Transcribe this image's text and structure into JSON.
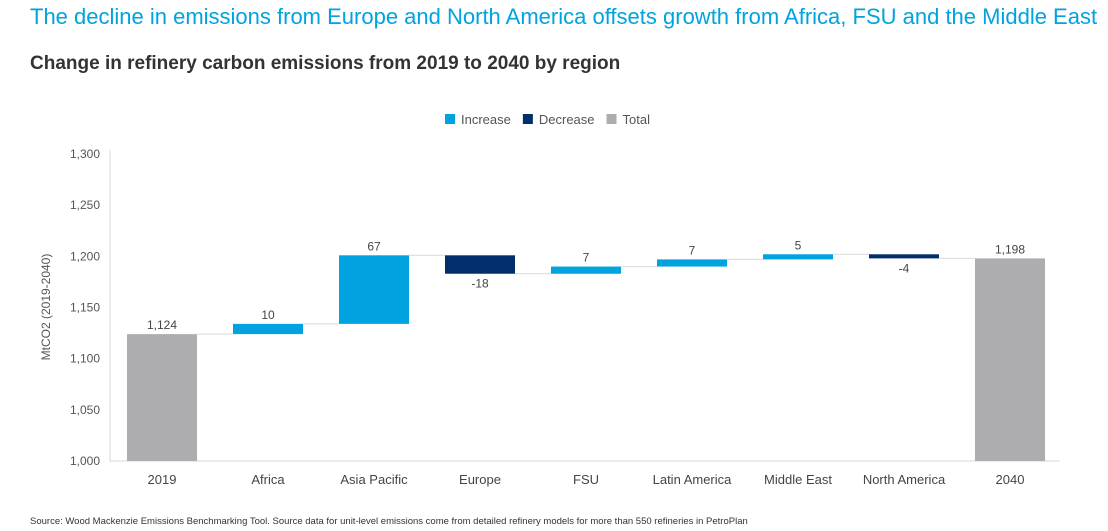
{
  "title": "The decline in emissions from Europe and North America offsets growth from Africa, FSU and the Middle East",
  "subtitle": "Change in refinery carbon emissions from 2019 to 2040 by region",
  "source": "Source: Wood Mackenzie Emissions Benchmarking Tool.  Source data for unit-level emissions come from detailed refinery models for more than 550 refineries in PetroPlan",
  "chart_data": {
    "type": "waterfall",
    "ylabel": "MtCO2 (2019-2040)",
    "ylim": [
      1000,
      1300
    ],
    "yticks": [
      1000,
      1050,
      1100,
      1150,
      1200,
      1250,
      1300
    ],
    "ytick_labels": [
      "1,000",
      "1,050",
      "1,100",
      "1,150",
      "1,200",
      "1,250",
      "1,300"
    ],
    "categories": [
      "2019",
      "Africa",
      "Asia Pacific",
      "Europe",
      "FSU",
      "Latin America",
      "Middle East",
      "North America",
      "2040"
    ],
    "values": [
      1124,
      10,
      67,
      -18,
      7,
      7,
      5,
      -4,
      1198
    ],
    "kinds": [
      "total",
      "increase",
      "increase",
      "decrease",
      "increase",
      "increase",
      "increase",
      "decrease",
      "total"
    ],
    "data_labels": [
      "1,124",
      "10",
      "67",
      "-18",
      "7",
      "7",
      "5",
      "-4",
      "1,198"
    ],
    "legend": [
      {
        "name": "Increase",
        "color": "#00a3e0"
      },
      {
        "name": "Decrease",
        "color": "#002f6c"
      },
      {
        "name": "Total",
        "color": "#adadb0"
      }
    ],
    "legend_position": "top-center",
    "grid": false
  }
}
